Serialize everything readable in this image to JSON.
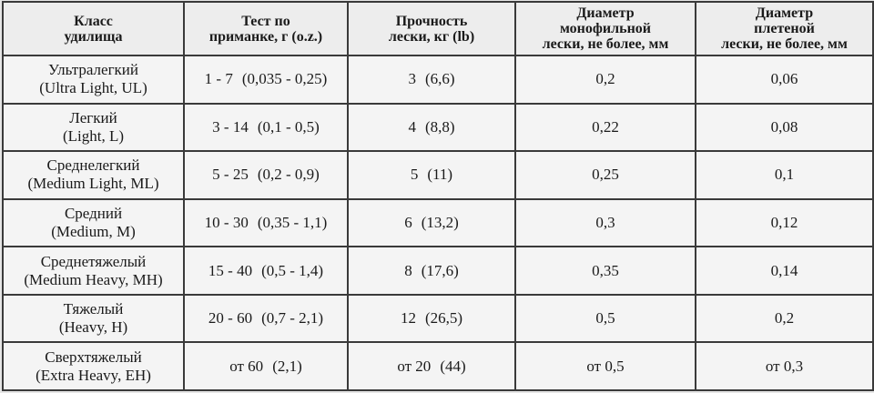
{
  "table": {
    "headers": [
      [
        "Класс",
        "удилища"
      ],
      [
        "Тест по",
        "приманке, г (o.z.)"
      ],
      [
        "Прочность",
        "лески, кг (lb)"
      ],
      [
        "Диаметр",
        "монофильной",
        "лески, не более, мм"
      ],
      [
        "Диаметр",
        "плетеной",
        "лески, не более, мм"
      ]
    ],
    "rows": [
      {
        "class_ru": "Ультралегкий",
        "class_en": "(Ultra Light, UL)",
        "test_g": "1 - 7",
        "test_oz": "(0,035 - 0,25)",
        "strength_kg": "3",
        "strength_lb": "(6,6)",
        "mono_mm": "0,2",
        "braid_mm": "0,06"
      },
      {
        "class_ru": "Легкий",
        "class_en": "(Light, L)",
        "test_g": "3 - 14",
        "test_oz": "(0,1 - 0,5)",
        "strength_kg": "4",
        "strength_lb": "(8,8)",
        "mono_mm": "0,22",
        "braid_mm": "0,08"
      },
      {
        "class_ru": "Среднелегкий",
        "class_en": "(Medium Light, ML)",
        "test_g": "5 - 25",
        "test_oz": "(0,2 - 0,9)",
        "strength_kg": "5",
        "strength_lb": "(11)",
        "mono_mm": "0,25",
        "braid_mm": "0,1"
      },
      {
        "class_ru": "Средний",
        "class_en": "(Medium, M)",
        "test_g": "10 - 30",
        "test_oz": "(0,35 - 1,1)",
        "strength_kg": "6",
        "strength_lb": "(13,2)",
        "mono_mm": "0,3",
        "braid_mm": "0,12"
      },
      {
        "class_ru": "Среднетяжелый",
        "class_en": "(Medium Heavy, MH)",
        "test_g": "15 - 40",
        "test_oz": "(0,5 - 1,4)",
        "strength_kg": "8",
        "strength_lb": "(17,6)",
        "mono_mm": "0,35",
        "braid_mm": "0,14"
      },
      {
        "class_ru": "Тяжелый",
        "class_en": "(Heavy, H)",
        "test_g": "20 - 60",
        "test_oz": "(0,7 - 2,1)",
        "strength_kg": "12",
        "strength_lb": "(26,5)",
        "mono_mm": "0,5",
        "braid_mm": "0,2"
      },
      {
        "class_ru": "Сверхтяжелый",
        "class_en": "(Extra Heavy, EH)",
        "test_g": "от 60",
        "test_oz": "(2,1)",
        "strength_kg": "от 20",
        "strength_lb": "(44)",
        "mono_mm": "от 0,5",
        "braid_mm": "от 0,3"
      }
    ]
  }
}
